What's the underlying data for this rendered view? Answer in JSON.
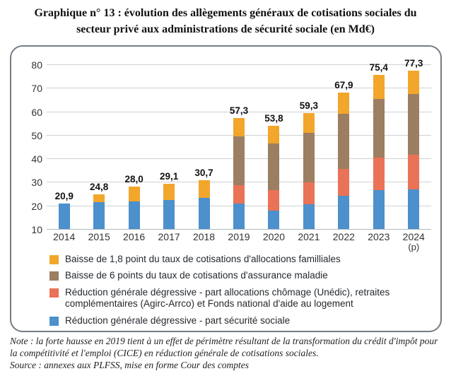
{
  "title": "Graphique n° 13 : évolution des allègements généraux de cotisations sociales du secteur privé aux administrations de sécurité sociale (en Md€)",
  "note": "Note : la forte hausse en 2019 tient à un effet de périmètre résultant de la transformation du crédit d'impôt pour la compétitivité et l'emploi (CICE) en réduction générale de cotisations sociales.",
  "source": "Source : annexes aux PLFSS, mise en forme Cour des comptes",
  "chart_data": {
    "type": "bar",
    "stacked": true,
    "unit": "Md€",
    "title": "Graphique n° 13 : évolution des allègements généraux de cotisations sociales du secteur privé aux administrations de sécurité sociale (en Md€)",
    "categories": [
      "2014",
      "2015",
      "2016",
      "2017",
      "2018",
      "2019",
      "2020",
      "2021",
      "2022",
      "2023",
      "2024"
    ],
    "provisional": {
      "index": 10,
      "label": "(p)"
    },
    "ylim": [
      10,
      80
    ],
    "yticks": [
      80,
      70,
      60,
      50,
      40,
      30,
      20,
      10
    ],
    "grid": "horizontal",
    "legend_position": "bottom-left-inside-frame",
    "series": [
      {
        "key": "reduction-generale-securite-sociale",
        "name": "Réduction générale dégressive - part sécurité sociale",
        "color": "#4C90CC",
        "values": [
          20.9,
          21.3,
          21.8,
          22.3,
          23.2,
          20.9,
          17.8,
          20.4,
          24.1,
          26.6,
          26.9
        ]
      },
      {
        "key": "reduction-generale-unedic-agirc-arrco-fnal",
        "name": "Réduction générale dégressive - part allocations chômage (Unédic), retraites complémentaires (Agirc-Arrco) et Fonds national d'aide au logement",
        "color": "#EA7256",
        "values": [
          0,
          0,
          0,
          0,
          0,
          7.7,
          8.8,
          9.3,
          11.5,
          13.8,
          14.7
        ]
      },
      {
        "key": "baisse-6-points-assurance-maladie",
        "name": "Baisse de 6 points du taux de cotisations d'assurance maladie",
        "color": "#9C7E63",
        "values": [
          0,
          0,
          0,
          0,
          0,
          20.8,
          19.8,
          21.2,
          23.3,
          25.0,
          25.8
        ]
      },
      {
        "key": "baisse-1-8-point-allocations-familliales",
        "name": "Baisse de 1,8 point du taux de cotisations d'allocations familliales",
        "color": "#F2A62B",
        "values": [
          0,
          3.5,
          6.2,
          6.8,
          7.5,
          7.9,
          7.4,
          8.4,
          9.0,
          10.0,
          9.9
        ]
      }
    ],
    "totals": [
      20.9,
      24.8,
      28.0,
      29.1,
      30.7,
      57.3,
      53.8,
      59.3,
      67.9,
      75.4,
      77.3
    ],
    "totals_labels": [
      "20,9",
      "24,8",
      "28,0",
      "29,1",
      "30,7",
      "57,3",
      "53,8",
      "59,3",
      "67,9",
      "75,4",
      "77,3"
    ],
    "legend": [
      {
        "label": "Baisse de 1,8 point du taux de cotisations d'allocations familliales",
        "color": "#F2A62B"
      },
      {
        "label": "Baisse de 6 points du taux de cotisations d'assurance maladie",
        "color": "#9C7E63"
      },
      {
        "label": "Réduction générale dégressive - part allocations chômage (Unédic), retraites complémentaires (Agirc-Arrco) et Fonds national d'aide au logement",
        "color": "#EA7256"
      },
      {
        "label": "Réduction générale dégressive - part sécurité sociale",
        "color": "#4C90CC"
      }
    ]
  }
}
